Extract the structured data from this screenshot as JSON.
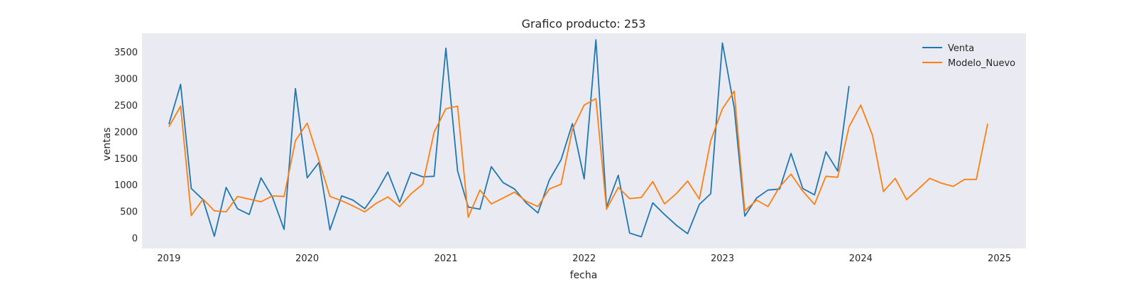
{
  "chart_data": {
    "type": "line",
    "title": "Grafico producto: 253",
    "xlabel": "fecha",
    "ylabel": "ventas",
    "xlim": [
      "2018-10-22",
      "2025-03-12"
    ],
    "ylim": [
      -200,
      3850
    ],
    "x_ticks": [
      "2019",
      "2020",
      "2021",
      "2022",
      "2023",
      "2024",
      "2025"
    ],
    "y_ticks": [
      0,
      500,
      1000,
      1500,
      2000,
      2500,
      3000,
      3500
    ],
    "grid": false,
    "legend_position": "top-right",
    "series": [
      {
        "name": "Venta",
        "color": "#1f77b4",
        "x": [
          "2019-01",
          "2019-02",
          "2019-03",
          "2019-04",
          "2019-05",
          "2019-06",
          "2019-07",
          "2019-08",
          "2019-09",
          "2019-10",
          "2019-11",
          "2019-12",
          "2020-01",
          "2020-02",
          "2020-03",
          "2020-04",
          "2020-05",
          "2020-06",
          "2020-07",
          "2020-08",
          "2020-09",
          "2020-10",
          "2020-11",
          "2020-12",
          "2021-01",
          "2021-02",
          "2021-03",
          "2021-04",
          "2021-05",
          "2021-06",
          "2021-07",
          "2021-08",
          "2021-09",
          "2021-10",
          "2021-11",
          "2021-12",
          "2022-01",
          "2022-02",
          "2022-03",
          "2022-04",
          "2022-05",
          "2022-06",
          "2022-07",
          "2022-08",
          "2022-09",
          "2022-10",
          "2022-11",
          "2022-12",
          "2023-01",
          "2023-02",
          "2023-03",
          "2023-04",
          "2023-05",
          "2023-06",
          "2023-07",
          "2023-08",
          "2023-09",
          "2023-10",
          "2023-11",
          "2023-12"
        ],
        "values": [
          2140,
          2890,
          930,
          720,
          30,
          950,
          550,
          440,
          1130,
          770,
          160,
          2810,
          1130,
          1420,
          150,
          790,
          710,
          550,
          850,
          1240,
          670,
          1230,
          1150,
          1160,
          3570,
          1260,
          580,
          540,
          1340,
          1040,
          920,
          660,
          470,
          1090,
          1470,
          2150,
          1110,
          3730,
          580,
          1180,
          90,
          20,
          660,
          440,
          240,
          80,
          630,
          830,
          3670,
          2450,
          410,
          750,
          900,
          920,
          1590,
          930,
          810,
          1620,
          1260,
          2860
        ]
      },
      {
        "name": "Modelo_Nuevo",
        "color": "#ff7f0e",
        "x": [
          "2019-01",
          "2019-02",
          "2019-03",
          "2019-04",
          "2019-05",
          "2019-06",
          "2019-07",
          "2019-08",
          "2019-09",
          "2019-10",
          "2019-11",
          "2019-12",
          "2020-01",
          "2020-02",
          "2020-03",
          "2020-04",
          "2020-05",
          "2020-06",
          "2020-07",
          "2020-08",
          "2020-09",
          "2020-10",
          "2020-11",
          "2020-12",
          "2021-01",
          "2021-02",
          "2021-03",
          "2021-04",
          "2021-05",
          "2021-06",
          "2021-07",
          "2021-08",
          "2021-09",
          "2021-10",
          "2021-11",
          "2021-12",
          "2022-01",
          "2022-02",
          "2022-03",
          "2022-04",
          "2022-05",
          "2022-06",
          "2022-07",
          "2022-08",
          "2022-09",
          "2022-10",
          "2022-11",
          "2022-12",
          "2023-01",
          "2023-02",
          "2023-03",
          "2023-04",
          "2023-05",
          "2023-06",
          "2023-07",
          "2023-08",
          "2023-09",
          "2023-10",
          "2023-11",
          "2023-12",
          "2024-01",
          "2024-02",
          "2024-03",
          "2024-04",
          "2024-05",
          "2024-06",
          "2024-07",
          "2024-08",
          "2024-09",
          "2024-10",
          "2024-11",
          "2024-12"
        ],
        "values": [
          2090,
          2480,
          420,
          730,
          510,
          490,
          780,
          730,
          680,
          790,
          780,
          1830,
          2160,
          1460,
          780,
          700,
          600,
          490,
          650,
          770,
          590,
          830,
          1010,
          1990,
          2430,
          2480,
          390,
          900,
          640,
          750,
          860,
          690,
          590,
          920,
          1010,
          2040,
          2500,
          2620,
          540,
          950,
          740,
          760,
          1060,
          640,
          830,
          1070,
          730,
          1830,
          2430,
          2760,
          510,
          710,
          590,
          960,
          1200,
          880,
          630,
          1160,
          1140,
          2090,
          2500,
          1930,
          870,
          1120,
          720,
          920,
          1120,
          1030,
          970,
          1100,
          1100,
          2150
        ]
      }
    ]
  }
}
